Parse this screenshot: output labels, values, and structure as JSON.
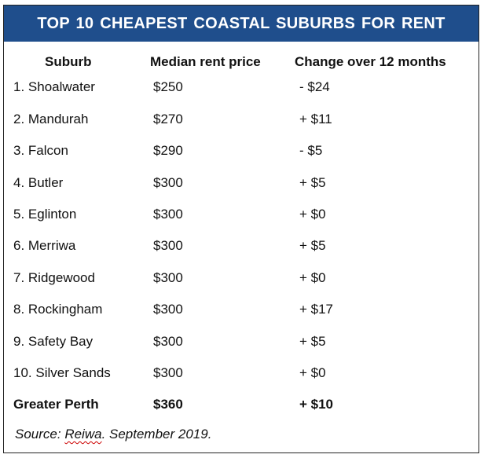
{
  "title": "TOP 10 CHEAPEST COASTAL SUBURBS FOR RENT",
  "colors": {
    "header_bg": "#1f4e8c",
    "header_text": "#ffffff",
    "border": "#222222",
    "spellcheck_underline": "#cc0000"
  },
  "columns": [
    "Suburb",
    "Median rent price",
    "Change over 12 months"
  ],
  "rows": [
    {
      "suburb": "1. Shoalwater",
      "median": "$250",
      "change": "- $24"
    },
    {
      "suburb": "2. Mandurah",
      "median": "$270",
      "change": "+ $11"
    },
    {
      "suburb": "3. Falcon",
      "median": "$290",
      "change": "- $5"
    },
    {
      "suburb": "4. Butler",
      "median": "$300",
      "change": "+ $5"
    },
    {
      "suburb": "5. Eglinton",
      "median": "$300",
      "change": "+ $0"
    },
    {
      "suburb": "6. Merriwa",
      "median": "$300",
      "change": "+ $5"
    },
    {
      "suburb": "7. Ridgewood",
      "median": "$300",
      "change": "+ $0"
    },
    {
      "suburb": "8. Rockingham",
      "median": "$300",
      "change": "+ $17"
    },
    {
      "suburb": "9. Safety Bay",
      "median": "$300",
      "change": "+ $5"
    },
    {
      "suburb": "10. Silver Sands",
      "median": "$300",
      "change": "+ $0"
    }
  ],
  "total": {
    "suburb": "Greater Perth",
    "median": "$360",
    "change": "+ $10"
  },
  "source": {
    "prefix": "Source: ",
    "name": "Reiwa",
    "suffix": ". September 2019."
  }
}
